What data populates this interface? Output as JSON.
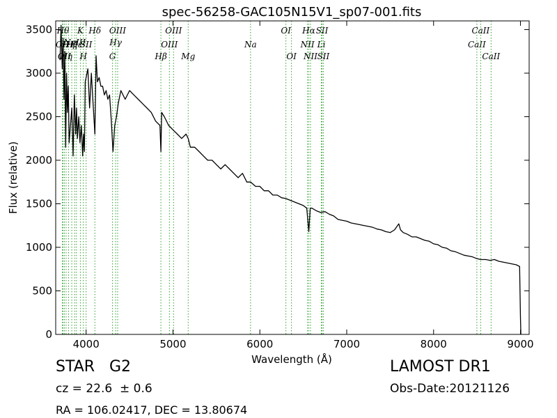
{
  "chart_data": {
    "type": "line",
    "title": "spec-56258-GAC105N15V1_sp07-001.fits",
    "xlabel": "Wavelength (Å)",
    "ylabel": "Flux (relative)",
    "xlim": [
      3650,
      9100
    ],
    "ylim": [
      0,
      3600
    ],
    "xticks": [
      4000,
      5000,
      6000,
      7000,
      8000,
      9000
    ],
    "yticks": [
      0,
      500,
      1000,
      1500,
      2000,
      2500,
      3000,
      3500
    ],
    "grid": false,
    "line_color": "#000000",
    "marker_color": "#2ca02c",
    "series": [
      {
        "x": [
          3700,
          3712,
          3725,
          3735,
          3745,
          3755,
          3765,
          3775,
          3785,
          3795,
          3805,
          3820,
          3835,
          3850,
          3865,
          3880,
          3890,
          3900,
          3915,
          3930,
          3945,
          3960,
          3970,
          3980,
          3990,
          4000,
          4020,
          4040,
          4060,
          4080,
          4101,
          4115,
          4130,
          4150,
          4170,
          4190,
          4210,
          4230,
          4250,
          4270,
          4290,
          4310,
          4330,
          4340,
          4350,
          4370,
          4400,
          4450,
          4500,
          4550,
          4600,
          4650,
          4700,
          4750,
          4800,
          4850,
          4861,
          4870,
          4900,
          4950,
          5000,
          5050,
          5100,
          5150,
          5175,
          5200,
          5250,
          5300,
          5350,
          5400,
          5450,
          5500,
          5550,
          5600,
          5650,
          5700,
          5750,
          5800,
          5850,
          5893,
          5950,
          6000,
          6050,
          6100,
          6150,
          6200,
          6250,
          6300,
          6350,
          6400,
          6450,
          6500,
          6540,
          6563,
          6580,
          6600,
          6650,
          6700,
          6750,
          6800,
          6850,
          6900,
          6950,
          7000,
          7050,
          7100,
          7150,
          7200,
          7250,
          7300,
          7350,
          7400,
          7450,
          7500,
          7550,
          7600,
          7620,
          7650,
          7700,
          7750,
          7800,
          7850,
          7900,
          7950,
          8000,
          8050,
          8100,
          8150,
          8200,
          8250,
          8300,
          8350,
          8400,
          8450,
          8500,
          8542,
          8600,
          8650,
          8700,
          8750,
          8800,
          8850,
          8900,
          8950,
          8990,
          9000,
          9005
        ],
        "y": [
          3150,
          3550,
          3050,
          3400,
          2700,
          3250,
          2150,
          3000,
          2550,
          2850,
          2200,
          2400,
          2600,
          2050,
          2750,
          2300,
          2600,
          2250,
          2500,
          2200,
          2400,
          2050,
          2300,
          2100,
          2900,
          2950,
          3050,
          2600,
          3000,
          2650,
          2300,
          3200,
          2900,
          2950,
          2850,
          2850,
          2750,
          2800,
          2700,
          2750,
          2450,
          2100,
          2400,
          2450,
          2500,
          2650,
          2800,
          2700,
          2800,
          2750,
          2700,
          2650,
          2600,
          2550,
          2450,
          2400,
          2100,
          2550,
          2500,
          2400,
          2350,
          2300,
          2250,
          2300,
          2250,
          2150,
          2150,
          2100,
          2050,
          2000,
          2000,
          1950,
          1900,
          1950,
          1900,
          1850,
          1800,
          1850,
          1750,
          1750,
          1700,
          1700,
          1650,
          1650,
          1600,
          1600,
          1570,
          1560,
          1540,
          1520,
          1500,
          1480,
          1450,
          1180,
          1450,
          1450,
          1420,
          1400,
          1410,
          1380,
          1360,
          1320,
          1310,
          1300,
          1280,
          1270,
          1260,
          1250,
          1240,
          1230,
          1210,
          1200,
          1180,
          1170,
          1200,
          1270,
          1200,
          1170,
          1150,
          1120,
          1120,
          1100,
          1080,
          1070,
          1040,
          1030,
          1000,
          990,
          960,
          950,
          930,
          910,
          900,
          890,
          870,
          860,
          860,
          850,
          860,
          840,
          830,
          820,
          810,
          800,
          780,
          200,
          0
        ]
      }
    ],
    "lines": [
      {
        "x": 3727,
        "label": "OII",
        "row": 3
      },
      {
        "x": 3734,
        "label": "Hθ",
        "row": 1
      },
      {
        "x": 3750,
        "label": "OII",
        "row": 4
      },
      {
        "x": 3770,
        "label": "Hη",
        "row": 4
      },
      {
        "x": 3798,
        "label": "Hη",
        "row": 3
      },
      {
        "x": 3835,
        "label": "Hζ",
        "row": 3
      },
      {
        "x": 3869,
        "label": "NeIII",
        "row": 2
      },
      {
        "x": 3889,
        "label": "Hε",
        "row": 3
      },
      {
        "x": 3934,
        "label": "K",
        "row": 1
      },
      {
        "x": 3968,
        "label": "H",
        "row": 4
      },
      {
        "x": 4000,
        "label": "SII",
        "row": 3
      },
      {
        "x": 4101,
        "label": "Hδ",
        "row": 1
      },
      {
        "x": 4304,
        "label": "G",
        "row": 4
      },
      {
        "x": 4340,
        "label": "Hγ",
        "row": 2
      },
      {
        "x": 4363,
        "label": "OIII",
        "row": 1
      },
      {
        "x": 4861,
        "label": "Hβ",
        "row": 4
      },
      {
        "x": 4959,
        "label": "OIII",
        "row": 3
      },
      {
        "x": 5007,
        "label": "OIII",
        "row": 1
      },
      {
        "x": 5175,
        "label": "Mg",
        "row": 4
      },
      {
        "x": 5893,
        "label": "Na",
        "row": 3
      },
      {
        "x": 6300,
        "label": "OI",
        "row": 1
      },
      {
        "x": 6364,
        "label": "OI",
        "row": 4
      },
      {
        "x": 6548,
        "label": "NII",
        "row": 3
      },
      {
        "x": 6563,
        "label": "Hα",
        "row": 1
      },
      {
        "x": 6583,
        "label": "NII",
        "row": 4
      },
      {
        "x": 6708,
        "label": "Li",
        "row": 3
      },
      {
        "x": 6716,
        "label": "SII",
        "row": 1
      },
      {
        "x": 6731,
        "label": "SII",
        "row": 4
      },
      {
        "x": 8498,
        "label": "CaII",
        "row": 3
      },
      {
        "x": 8542,
        "label": "CaII",
        "row": 1
      },
      {
        "x": 8662,
        "label": "CaII",
        "row": 4
      }
    ]
  },
  "info": {
    "object_class": "STAR",
    "subclass": "G2",
    "redshift": "cz = 22.6  ± 0.6",
    "survey": "LAMOST DR1",
    "obs_date": "Obs-Date:20121126",
    "coords": "RA = 106.02417, DEC = 13.80674"
  }
}
